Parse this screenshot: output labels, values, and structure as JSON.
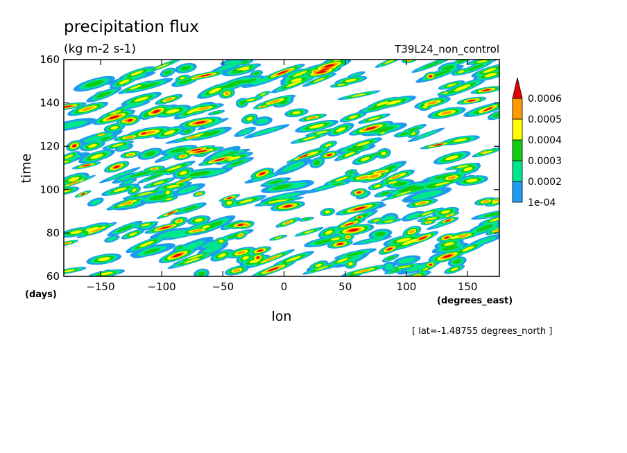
{
  "chart_data": {
    "type": "heatmap",
    "title": "precipitation flux",
    "subtitle": "(kg m-2 s-1)",
    "run_label": "T39L24_non_control",
    "xlabel": "lon",
    "ylabel": "time",
    "x_units": "(degrees_east)",
    "y_units": "(days)",
    "footnote": "[ lat=-1.48755 degrees_north ]",
    "xlim": [
      -180,
      176
    ],
    "ylim": [
      60,
      160
    ],
    "x_ticks": [
      -150,
      -100,
      -50,
      0,
      50,
      100,
      150
    ],
    "y_ticks": [
      60,
      80,
      100,
      120,
      140,
      160
    ],
    "x_tick_labels": [
      "-150",
      "-100",
      "-50",
      "0",
      "50",
      "100",
      "150"
    ],
    "y_tick_labels": [
      "60",
      "80",
      "100",
      "120",
      "140",
      "160"
    ],
    "grid": false,
    "legend_placement": "right",
    "colorbar": {
      "levels": [
        0.0001,
        0.0002,
        0.0003,
        0.0004,
        0.0005,
        0.0006
      ],
      "labels": [
        "1e-04",
        "0.0002",
        "0.0003",
        "0.0004",
        "0.0005",
        "0.0006"
      ],
      "colors": [
        "#ffffff",
        "#1e9bf0",
        "#00e68c",
        "#11cc11",
        "#ffff00",
        "#ff9900",
        "#e60000"
      ]
    }
  }
}
